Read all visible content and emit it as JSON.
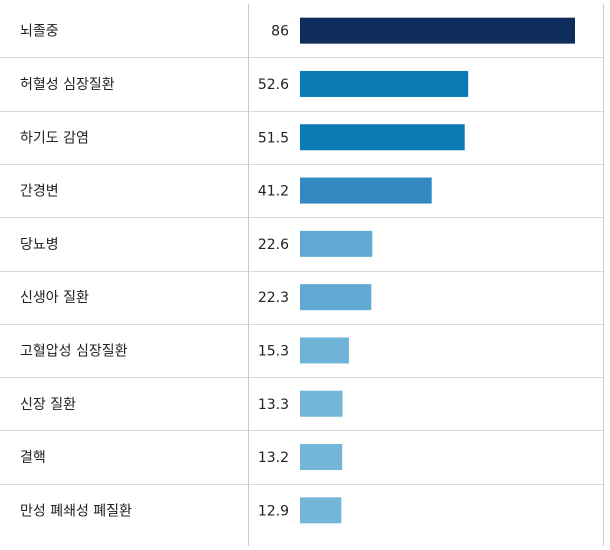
{
  "chart_data": {
    "type": "bar",
    "orientation": "horizontal",
    "categories": [
      "뇌졸중",
      "허혈성 심장질환",
      "하기도 감염",
      "간경변",
      "당뇨병",
      "신생아 질환",
      "고혈압성 심장질환",
      "신장 질환",
      "결핵",
      "만성 폐쇄성 폐질환"
    ],
    "values": [
      86,
      52.6,
      51.5,
      41.2,
      22.6,
      22.3,
      15.3,
      13.3,
      13.2,
      12.9
    ],
    "value_labels": [
      "86",
      "52.6",
      "51.5",
      "41.2",
      "22.6",
      "22.3",
      "15.3",
      "13.3",
      "13.2",
      "12.9"
    ],
    "bar_colors": [
      "#0f2d5c",
      "#0a7ab5",
      "#0a7ab5",
      "#3389c2",
      "#5fa9d3",
      "#5fa9d3",
      "#70b3d9",
      "#74b5da",
      "#74b5da",
      "#74b5da"
    ],
    "xlim": [
      0,
      86
    ],
    "title": "",
    "xlabel": "",
    "ylabel": "",
    "grid": false,
    "legend": "none"
  }
}
